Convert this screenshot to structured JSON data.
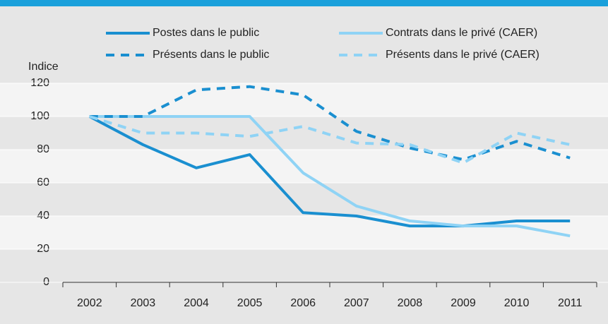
{
  "chart_data": {
    "type": "line",
    "y_label": "Indice",
    "categories": [
      "2002",
      "2003",
      "2004",
      "2005",
      "2006",
      "2007",
      "2008",
      "2009",
      "2010",
      "2011"
    ],
    "series": [
      {
        "name": "Postes dans le public",
        "color": "#1a8fd0",
        "style": "solid",
        "values": [
          100,
          83,
          69,
          77,
          42,
          40,
          34,
          34,
          37,
          37
        ]
      },
      {
        "name": "Contrats dans le privé (CAER)",
        "color": "#8fd3f5",
        "style": "solid",
        "values": [
          100,
          100,
          100,
          100,
          66,
          46,
          37,
          34,
          34,
          28
        ]
      },
      {
        "name": "Présents dans le public",
        "color": "#1a8fd0",
        "style": "dashed",
        "values": [
          100,
          100,
          116,
          118,
          113,
          91,
          81,
          74,
          85,
          75
        ]
      },
      {
        "name": "Présents dans le privé  (CAER)",
        "color": "#8fd3f5",
        "style": "dashed",
        "values": [
          100,
          90,
          90,
          88,
          94,
          84,
          83,
          72,
          90,
          83
        ]
      }
    ],
    "ylim": [
      0,
      120
    ],
    "yticks": [
      0,
      20,
      40,
      60,
      80,
      100,
      120
    ],
    "grid": true
  }
}
